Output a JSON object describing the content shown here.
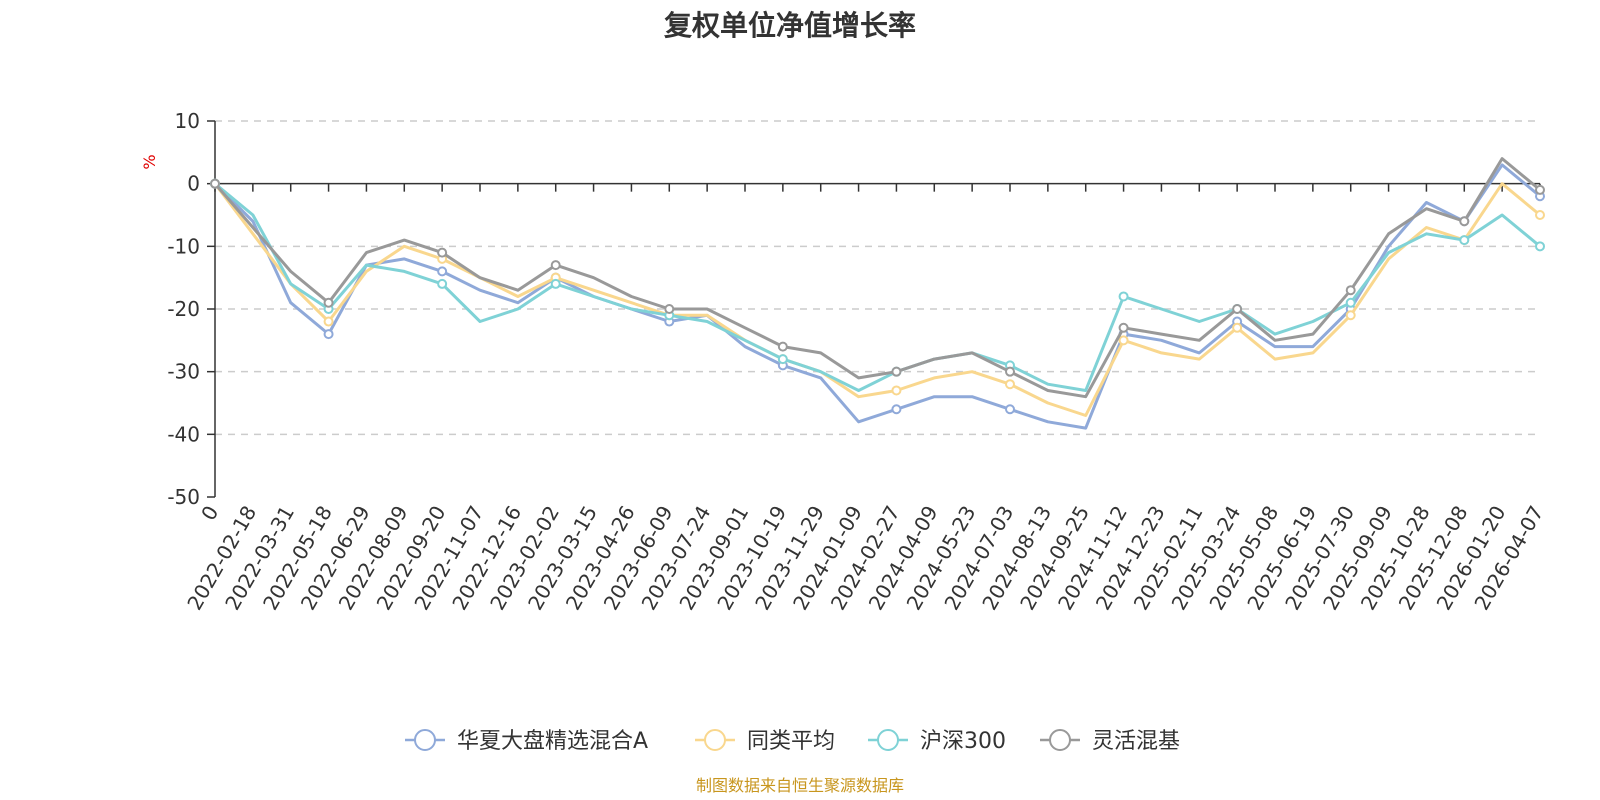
{
  "chart_data": {
    "type": "line",
    "title": "复权单位净值增长率",
    "ylabel": "%",
    "ylim": [
      -50,
      10
    ],
    "yticks": [
      10,
      0,
      -10,
      -20,
      -30,
      -40,
      -50
    ],
    "grid": true,
    "legend_position": "bottom",
    "source": "制图数据来自恒生聚源数据库",
    "categories": [
      "0",
      "2022-02-18",
      "2022-03-31",
      "2022-05-18",
      "2022-06-29",
      "2022-08-09",
      "2022-09-20",
      "2022-11-07",
      "2022-12-16",
      "2023-02-02",
      "2023-03-15",
      "2023-04-26",
      "2023-06-09",
      "2023-07-24",
      "2023-09-01",
      "2023-10-19",
      "2023-11-29",
      "2024-01-09",
      "2024-02-27",
      "2024-04-09",
      "2024-05-23",
      "2024-07-03",
      "2024-08-13",
      "2024-09-25",
      "2024-11-12",
      "2024-12-23",
      "2025-02-11",
      "2025-03-24",
      "2025-05-08",
      "2025-06-19",
      "2025-07-30",
      "2025-09-09",
      "2025-10-28",
      "2025-12-08",
      "2026-01-20",
      "2026-04-07"
    ],
    "series": [
      {
        "name": "华夏大盘精选混合A",
        "color": "#8fa9d9",
        "values": [
          0,
          -6,
          -19,
          -24,
          -13,
          -12,
          -14,
          -17,
          -19,
          -15,
          -18,
          -20,
          -22,
          -21,
          -26,
          -29,
          -31,
          -38,
          -36,
          -34,
          -34,
          -36,
          -38,
          -39,
          -24,
          -25,
          -27,
          -22,
          -26,
          -26,
          -20,
          -10,
          -3,
          -6,
          3,
          -2
        ]
      },
      {
        "name": "同类平均",
        "color": "#f9d78e",
        "values": [
          0,
          -8,
          -16,
          -22,
          -14,
          -10,
          -12,
          -15,
          -18,
          -15,
          -17,
          -19,
          -21,
          -21,
          -25,
          -28,
          -30,
          -34,
          -33,
          -31,
          -30,
          -32,
          -35,
          -37,
          -25,
          -27,
          -28,
          -23,
          -28,
          -27,
          -21,
          -12,
          -7,
          -9,
          0,
          -5
        ]
      },
      {
        "name": "沪深300",
        "color": "#7fd2d6",
        "values": [
          0,
          -5,
          -16,
          -20,
          -13,
          -14,
          -16,
          -22,
          -20,
          -16,
          -18,
          -20,
          -21,
          -22,
          -25,
          -28,
          -30,
          -33,
          -30,
          -28,
          -27,
          -29,
          -32,
          -33,
          -18,
          -20,
          -22,
          -20,
          -24,
          -22,
          -19,
          -11,
          -8,
          -9,
          -5,
          -10
        ]
      },
      {
        "name": "灵活混基",
        "color": "#999999",
        "values": [
          0,
          -7,
          -14,
          -19,
          -11,
          -9,
          -11,
          -15,
          -17,
          -13,
          -15,
          -18,
          -20,
          -20,
          -23,
          -26,
          -27,
          -31,
          -30,
          -28,
          -27,
          -30,
          -33,
          -34,
          -23,
          -24,
          -25,
          -20,
          -25,
          -24,
          -17,
          -8,
          -4,
          -6,
          4,
          -1
        ]
      }
    ]
  }
}
